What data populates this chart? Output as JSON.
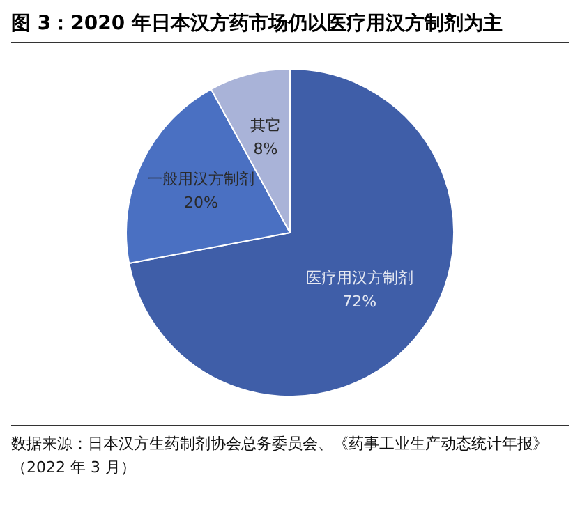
{
  "chart_data": {
    "type": "pie",
    "title": "图 3：2020 年日本汉方药市场仍以医疗用汉方制剂为主",
    "categories": [
      "医疗用汉方制剂",
      "一般用汉方制剂",
      "其它"
    ],
    "values": [
      72,
      20,
      8
    ],
    "value_labels": [
      "72%",
      "20%",
      "8%"
    ],
    "colors": [
      "#3f5ea8",
      "#4a70c2",
      "#a9b3d8"
    ],
    "legend": false,
    "annotations": [
      "数据来源：日本汉方生药制剂协会总务委员会、《药事工业生产动态统计年报》（2022 年 3 月）"
    ]
  }
}
